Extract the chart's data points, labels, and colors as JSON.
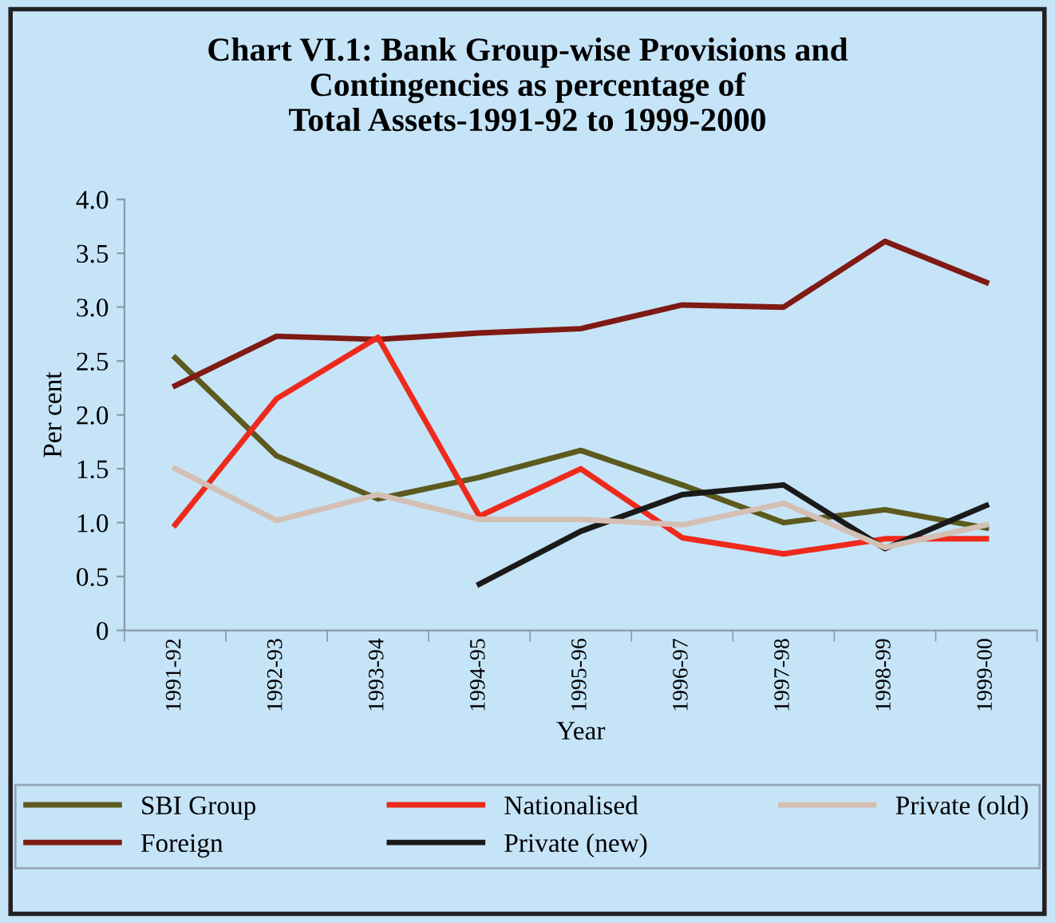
{
  "chart_data": {
    "type": "line",
    "title": "Chart VI.1: Bank Group-wise Provisions and\nContingencies as percentage of\nTotal Assets-1991-92 to 1999-2000",
    "xlabel": "Year",
    "ylabel": "Per cent",
    "categories": [
      "1991-92",
      "1992-93",
      "1993-94",
      "1994-95",
      "1995-96",
      "1996-97",
      "1997-98",
      "1998-99",
      "1999-00"
    ],
    "series": [
      {
        "name": "SBI Group",
        "color": "#5c5a1e",
        "values": [
          2.53,
          1.62,
          1.22,
          1.42,
          1.67,
          1.35,
          1.0,
          1.12,
          0.95
        ]
      },
      {
        "name": "Foreign",
        "color": "#7f1a14",
        "values": [
          2.27,
          2.73,
          2.7,
          2.76,
          2.8,
          3.02,
          3.0,
          3.61,
          3.23
        ]
      },
      {
        "name": "Nationalised",
        "color": "#ee2a1c",
        "values": [
          0.98,
          2.15,
          2.72,
          1.06,
          1.5,
          0.86,
          0.71,
          0.85,
          0.85
        ]
      },
      {
        "name": "Private (new)",
        "color": "#1a1a1a",
        "values": [
          null,
          null,
          null,
          0.43,
          0.92,
          1.26,
          1.35,
          0.76,
          1.16
        ]
      },
      {
        "name": "Private (old)",
        "color": "#d4bfb4",
        "values": [
          1.5,
          1.02,
          1.26,
          1.03,
          1.03,
          0.98,
          1.18,
          0.77,
          0.98
        ]
      }
    ],
    "ylim": [
      0,
      4.0
    ],
    "yticks": [
      {
        "value": 0,
        "label": "0"
      },
      {
        "value": 0.5,
        "label": "0.5"
      },
      {
        "value": 1.0,
        "label": "1.0"
      },
      {
        "value": 1.5,
        "label": "1.5"
      },
      {
        "value": 2.0,
        "label": "2.0"
      },
      {
        "value": 2.5,
        "label": "2.5"
      },
      {
        "value": 3.0,
        "label": "3.0"
      },
      {
        "value": 3.5,
        "label": "3.5"
      },
      {
        "value": 4.0,
        "label": "4.0"
      }
    ],
    "grid": false,
    "legend": "bottom",
    "line_style": "solid",
    "marker": "none"
  }
}
